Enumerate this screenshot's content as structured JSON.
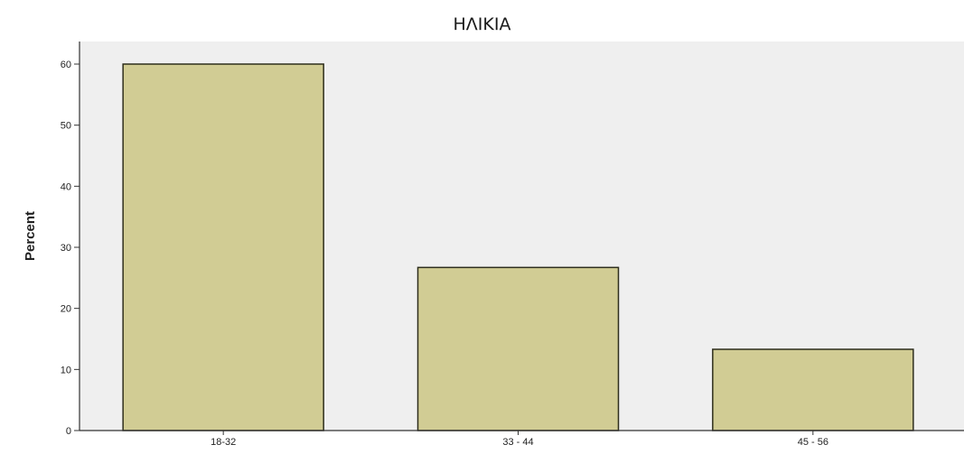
{
  "chart_data": {
    "type": "bar",
    "title": "ΗΛΙΚΙΑ",
    "xlabel": "",
    "ylabel": "Percent",
    "categories": [
      "18-32",
      "33 - 44",
      "45 - 56"
    ],
    "values": [
      60,
      26.7,
      13.3
    ],
    "ylim": [
      0,
      60
    ],
    "yticks": [
      0,
      10,
      20,
      30,
      40,
      50,
      60
    ],
    "grid": false,
    "legend": "none",
    "colors": {
      "bar_fill": "#d1cc94",
      "bar_stroke": "#2e2e1c",
      "plot_background": "#efefef",
      "axis": "#333333"
    }
  }
}
